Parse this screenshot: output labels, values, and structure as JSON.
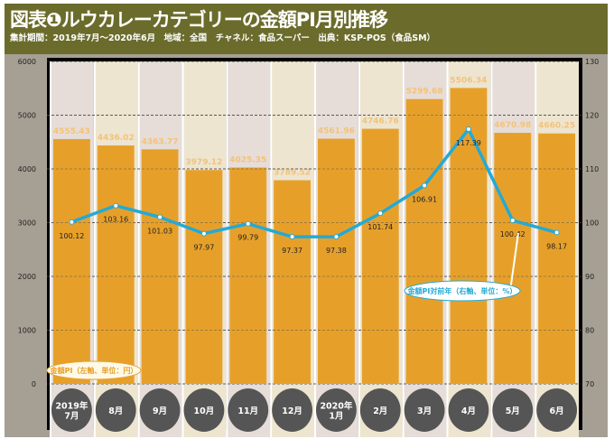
{
  "header": {
    "title": "図表❶ルウカレーカテゴリーの金額PI月別推移",
    "subtitle": "集計期間：2019年7月～2020年6月　地域：全国　チャネル：食品スーパー　出典：KSP-POS（食品SM）"
  },
  "chart_data": {
    "type": "bar+line",
    "categories": [
      "2019年\n7月",
      "8月",
      "9月",
      "10月",
      "11月",
      "12月",
      "2020年\n1月",
      "2月",
      "3月",
      "4月",
      "5月",
      "6月"
    ],
    "series": [
      {
        "name": "金額PI（左軸、単位：円）",
        "type": "bar",
        "axis": "left",
        "values": [
          4555.43,
          4436.02,
          4363.77,
          3979.12,
          4025.35,
          3789.52,
          4561.96,
          4746.76,
          5299.68,
          5506.34,
          4670.98,
          4660.25
        ]
      },
      {
        "name": "金額PI対前年（右軸、単位：%）",
        "type": "line",
        "axis": "right",
        "values": [
          100.12,
          103.16,
          101.03,
          97.97,
          99.79,
          97.37,
          97.38,
          101.74,
          106.91,
          117.39,
          100.42,
          98.17
        ]
      }
    ],
    "left_axis": {
      "ylim": [
        0,
        6000
      ],
      "ticks": [
        0,
        1000,
        2000,
        3000,
        4000,
        5000,
        6000
      ]
    },
    "right_axis": {
      "ylim": [
        70,
        130
      ],
      "ticks": [
        70,
        80,
        90,
        100,
        110,
        120,
        130
      ]
    },
    "grid": true,
    "colors": {
      "bar": "#e6a02a",
      "line": "#23aad6",
      "bar_label": "#f3c27a",
      "month_circle": "#555555"
    }
  }
}
